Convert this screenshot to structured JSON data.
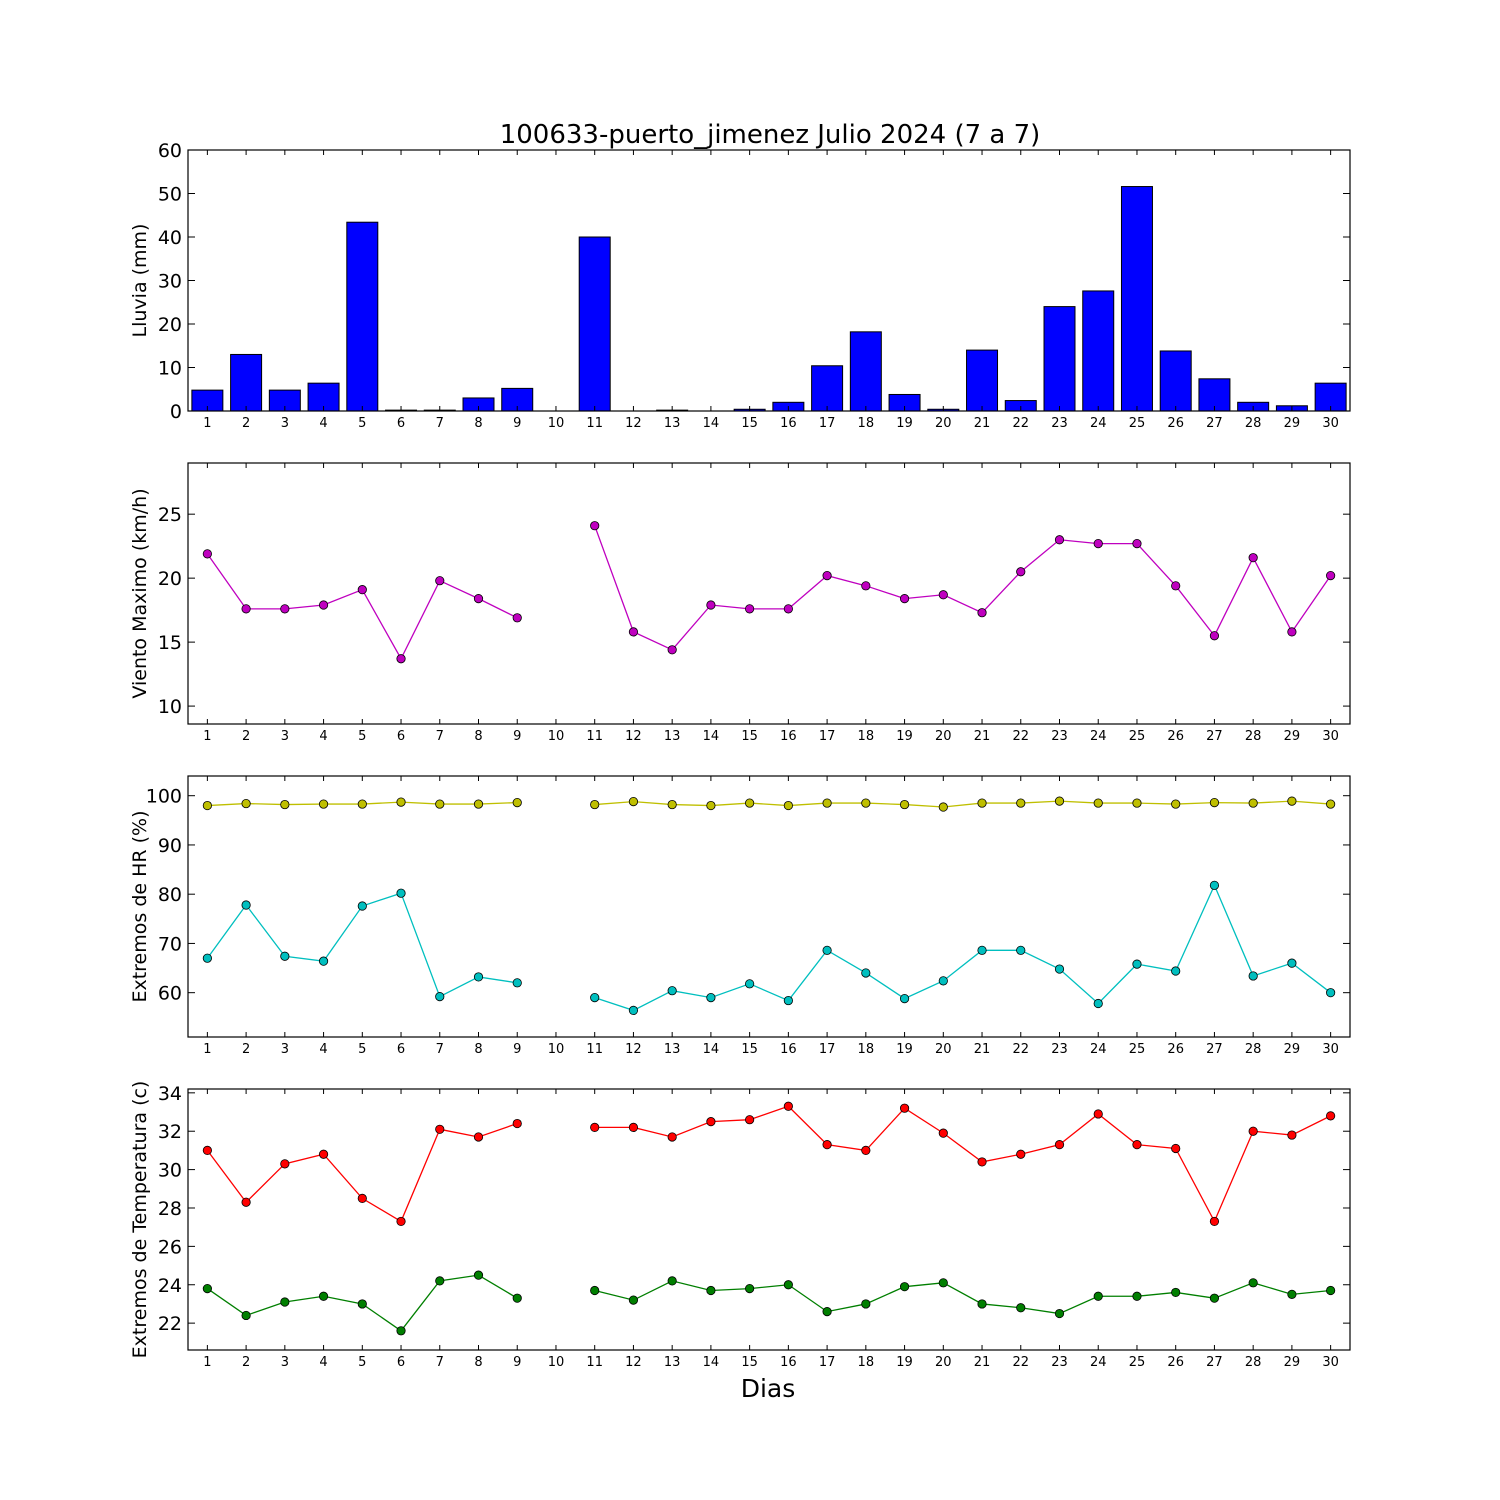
{
  "title": "100633-puerto_jimenez Julio 2024  (7 a 7)",
  "chart_data": [
    {
      "type": "bar",
      "ylabel": "Lluvia (mm)",
      "ylim": [
        0,
        60
      ],
      "yticks": [
        0,
        10,
        20,
        30,
        40,
        50,
        60
      ],
      "categories": [
        "1",
        "2",
        "3",
        "4",
        "5",
        "6",
        "7",
        "8",
        "9",
        "10",
        "11",
        "12",
        "13",
        "14",
        "15",
        "16",
        "17",
        "18",
        "19",
        "20",
        "21",
        "22",
        "23",
        "24",
        "25",
        "26",
        "27",
        "28",
        "29",
        "30"
      ],
      "values": [
        4.8,
        13.0,
        4.8,
        6.4,
        43.4,
        0.2,
        0.2,
        3.0,
        5.2,
        0,
        40.0,
        0,
        0.2,
        0,
        0.4,
        2.0,
        10.4,
        18.2,
        3.8,
        0.4,
        14.0,
        2.4,
        24.0,
        27.6,
        51.6,
        13.8,
        7.4,
        2.0,
        1.2,
        6.4
      ],
      "color": "#0000ff"
    },
    {
      "type": "line",
      "ylabel": "Viento Maximo (km/h)",
      "ylim": [
        8.6,
        29
      ],
      "yticks": [
        10,
        15,
        20,
        25
      ],
      "categories": [
        "1",
        "2",
        "3",
        "4",
        "5",
        "6",
        "7",
        "8",
        "9",
        "10",
        "11",
        "12",
        "13",
        "14",
        "15",
        "16",
        "17",
        "18",
        "19",
        "20",
        "21",
        "22",
        "23",
        "24",
        "25",
        "26",
        "27",
        "28",
        "29",
        "30"
      ],
      "series": [
        {
          "values": [
            21.9,
            17.6,
            17.6,
            17.9,
            19.1,
            13.7,
            19.8,
            18.4,
            16.9,
            null,
            24.1,
            15.8,
            14.4,
            17.9,
            17.6,
            17.6,
            20.2,
            19.4,
            18.4,
            18.7,
            17.3,
            20.5,
            23.0,
            22.7,
            22.7,
            19.4,
            15.5,
            21.6,
            15.8,
            20.2
          ],
          "color": "#bf00bf"
        }
      ]
    },
    {
      "type": "line",
      "ylabel": "Extremos de HR (%)",
      "ylim": [
        51,
        104
      ],
      "yticks": [
        60,
        70,
        80,
        90,
        100
      ],
      "categories": [
        "1",
        "2",
        "3",
        "4",
        "5",
        "6",
        "7",
        "8",
        "9",
        "10",
        "11",
        "12",
        "13",
        "14",
        "15",
        "16",
        "17",
        "18",
        "19",
        "20",
        "21",
        "22",
        "23",
        "24",
        "25",
        "26",
        "27",
        "28",
        "29",
        "30"
      ],
      "series": [
        {
          "values": [
            98.0,
            98.4,
            98.2,
            98.3,
            98.3,
            98.7,
            98.3,
            98.3,
            98.6,
            null,
            98.2,
            98.8,
            98.2,
            98.0,
            98.5,
            98.0,
            98.5,
            98.5,
            98.2,
            97.7,
            98.5,
            98.5,
            98.9,
            98.5,
            98.5,
            98.3,
            98.6,
            98.5,
            98.9,
            98.3
          ],
          "color": "#bfbf00"
        },
        {
          "values": [
            67.0,
            77.8,
            67.4,
            66.4,
            77.6,
            80.2,
            59.2,
            63.2,
            62.0,
            null,
            59.0,
            56.4,
            60.4,
            59.0,
            61.8,
            58.4,
            68.6,
            64.0,
            58.8,
            62.4,
            68.6,
            68.6,
            64.8,
            57.8,
            65.8,
            64.4,
            81.8,
            63.4,
            66.0,
            60.0
          ],
          "color": "#00bfbf"
        }
      ]
    },
    {
      "type": "line",
      "ylabel": "Extremos de Temperatura (c)",
      "xlabel": "Dias",
      "ylim": [
        20.6,
        34.2
      ],
      "yticks": [
        22,
        24,
        26,
        28,
        30,
        32,
        34
      ],
      "categories": [
        "1",
        "2",
        "3",
        "4",
        "5",
        "6",
        "7",
        "8",
        "9",
        "10",
        "11",
        "12",
        "13",
        "14",
        "15",
        "16",
        "17",
        "18",
        "19",
        "20",
        "21",
        "22",
        "23",
        "24",
        "25",
        "26",
        "27",
        "28",
        "29",
        "30"
      ],
      "series": [
        {
          "values": [
            31.0,
            28.3,
            30.3,
            30.8,
            28.5,
            27.3,
            32.1,
            31.7,
            32.4,
            null,
            32.2,
            32.2,
            31.7,
            32.5,
            32.6,
            33.3,
            31.3,
            31.0,
            33.2,
            31.9,
            30.4,
            30.8,
            31.3,
            32.9,
            31.3,
            31.1,
            27.3,
            32.0,
            31.8,
            32.8
          ],
          "color": "#ff0000"
        },
        {
          "values": [
            23.8,
            22.4,
            23.1,
            23.4,
            23.0,
            21.6,
            24.2,
            24.5,
            23.3,
            null,
            23.7,
            23.2,
            24.2,
            23.7,
            23.8,
            24.0,
            22.6,
            23.0,
            23.9,
            24.1,
            23.0,
            22.8,
            22.5,
            23.4,
            23.4,
            23.6,
            23.3,
            24.1,
            23.5,
            23.7
          ],
          "color": "#007f00"
        }
      ]
    }
  ]
}
